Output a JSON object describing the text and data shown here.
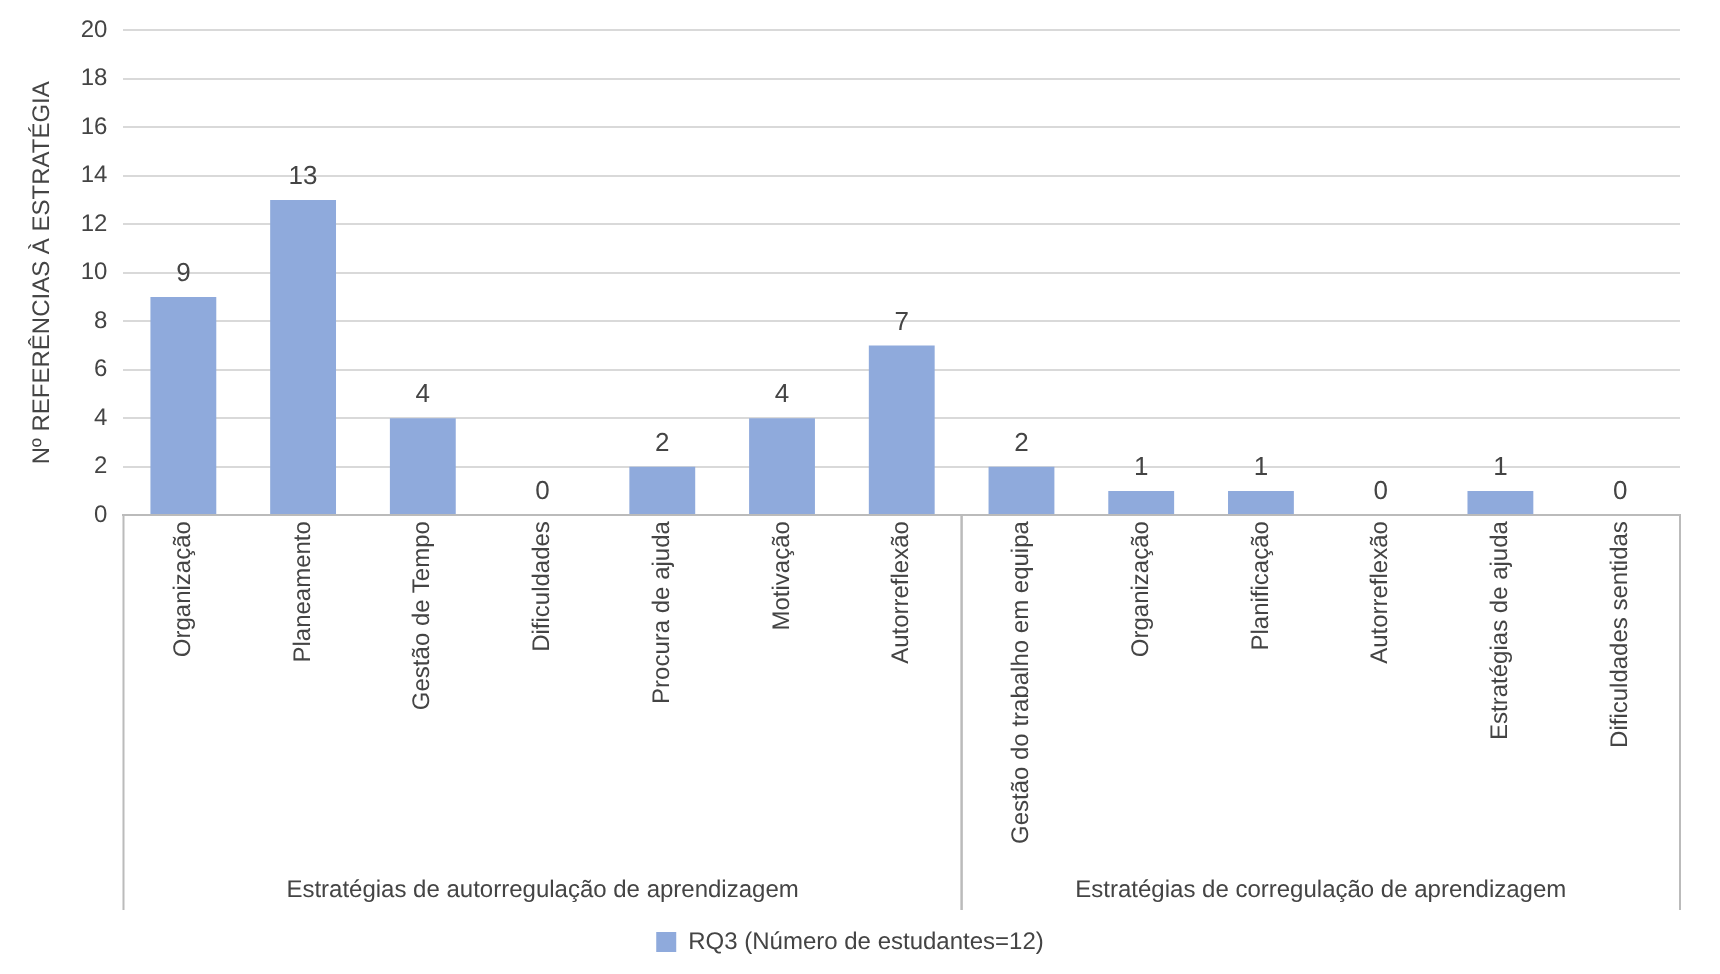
{
  "chart_data": {
    "type": "bar",
    "ylabel": "Nº REFERÊNCIAS À ESTRATÉGIA",
    "categories": [
      "Organização",
      "Planeamento",
      "Gestão de Tempo",
      "Dificuldades",
      "Procura de ajuda",
      "Motivação",
      "Autorreflexão",
      "Gestão do trabalho em equipa",
      "Organização",
      "Planificação",
      "Autorreflexão",
      "Estratégias de ajuda",
      "Dificuldades sentidas"
    ],
    "series": [
      {
        "name": "RQ3 (Número de estudantes=12)",
        "color": "#8faadc",
        "values": [
          9,
          13,
          4,
          0,
          2,
          4,
          7,
          2,
          1,
          1,
          0,
          1,
          0
        ]
      }
    ],
    "ylim": [
      0,
      20
    ],
    "yticks": [
      0,
      2,
      4,
      6,
      8,
      10,
      12,
      14,
      16,
      18,
      20
    ],
    "grid": "y",
    "legend": "bottom",
    "data_labels": true,
    "annotations": [
      "Estratégias de autorregulação de aprendizagem",
      "Estratégias de corregulação de aprendizagem"
    ]
  }
}
